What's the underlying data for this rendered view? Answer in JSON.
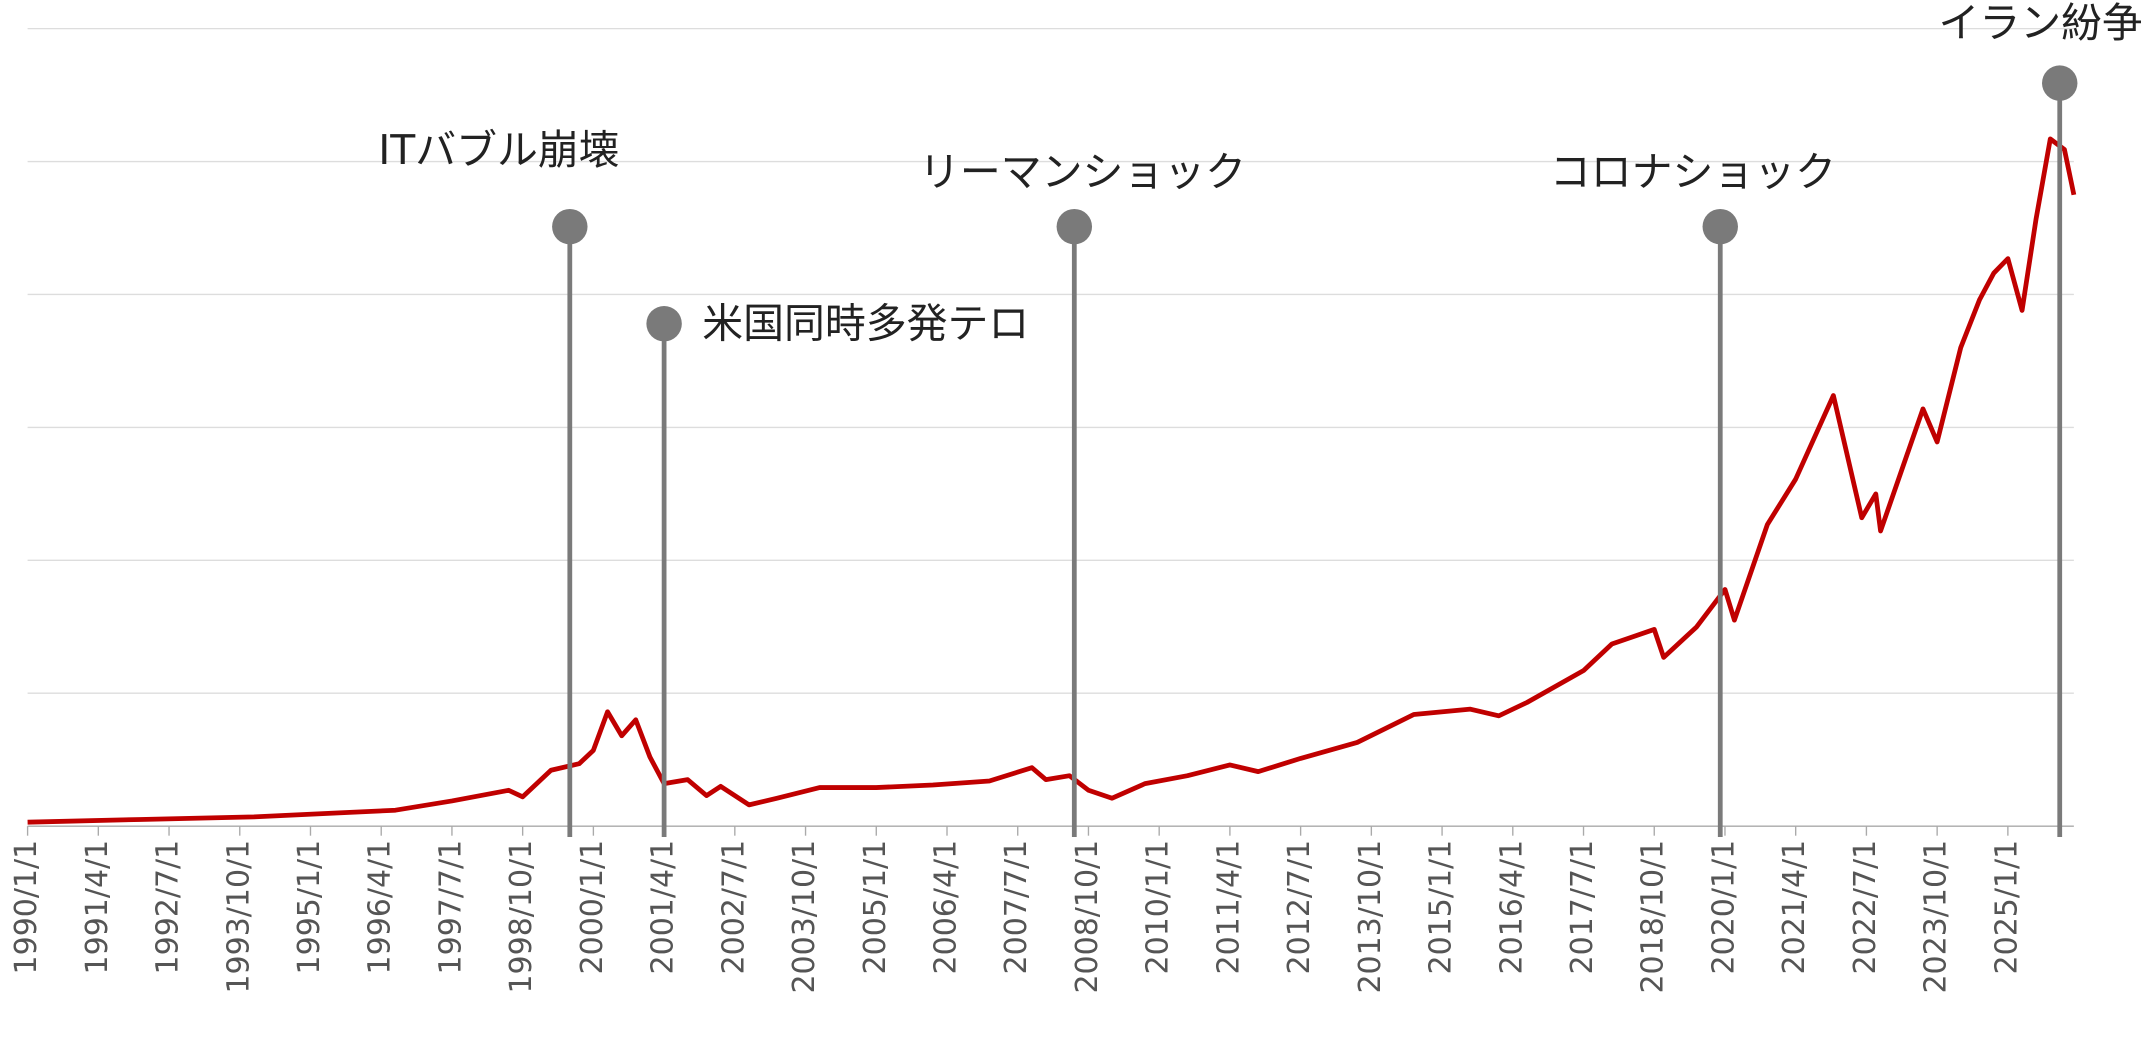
{
  "chart_data": {
    "type": "line",
    "x": [
      "1990/1/1",
      "1992/1/1",
      "1994/1/1",
      "1995/7/1",
      "1996/7/1",
      "1997/7/1",
      "1998/7/1",
      "1998/10/1",
      "1999/4/1",
      "1999/10/1",
      "2000/1/1",
      "2000/4/1",
      "2000/7/1",
      "2000/10/1",
      "2001/1/1",
      "2001/4/1",
      "2001/9/1",
      "2002/1/1",
      "2002/4/1",
      "2002/10/1",
      "2003/4/1",
      "2004/1/1",
      "2005/1/1",
      "2006/1/1",
      "2007/1/1",
      "2007/10/1",
      "2008/1/1",
      "2008/6/1",
      "2008/10/1",
      "2009/3/1",
      "2009/10/1",
      "2010/7/1",
      "2011/4/1",
      "2011/10/1",
      "2012/7/1",
      "2013/7/1",
      "2014/7/1",
      "2015/7/1",
      "2016/1/1",
      "2016/7/1",
      "2017/7/1",
      "2018/1/1",
      "2018/10/1",
      "2018/12/1",
      "2019/7/1",
      "2020/1/1",
      "2020/3/1",
      "2020/10/1",
      "2021/4/1",
      "2021/12/1",
      "2022/6/1",
      "2022/9/1",
      "2022/10/1",
      "2023/7/1",
      "2023/10/1",
      "2024/3/1",
      "2024/7/1",
      "2024/10/1",
      "2025/1/1",
      "2025/4/1",
      "2025/7/1",
      "2025/10/1",
      "2026/1/1",
      "2026/3/1"
    ],
    "values": [
      0.03,
      0.05,
      0.07,
      0.1,
      0.12,
      0.19,
      0.27,
      0.22,
      0.42,
      0.47,
      0.57,
      0.86,
      0.68,
      0.8,
      0.52,
      0.32,
      0.35,
      0.23,
      0.3,
      0.16,
      0.21,
      0.29,
      0.29,
      0.31,
      0.34,
      0.44,
      0.35,
      0.38,
      0.27,
      0.21,
      0.32,
      0.38,
      0.46,
      0.41,
      0.51,
      0.63,
      0.84,
      0.88,
      0.83,
      0.93,
      1.17,
      1.37,
      1.48,
      1.27,
      1.5,
      1.78,
      1.55,
      2.27,
      2.61,
      3.24,
      2.32,
      2.5,
      2.22,
      3.14,
      2.89,
      3.6,
      3.96,
      4.16,
      4.27,
      3.88,
      4.57,
      5.17,
      5.09,
      4.75
    ],
    "color": "#c00000",
    "xlim": [
      "1990/1/1",
      "2026/3/1"
    ],
    "xticks": [
      "1990/1/1",
      "1991/4/1",
      "1992/7/1",
      "1993/10/1",
      "1995/1/1",
      "1996/4/1",
      "1997/7/1",
      "1998/10/1",
      "2000/1/1",
      "2001/4/1",
      "2002/7/1",
      "2003/10/1",
      "2005/1/1",
      "2006/4/1",
      "2007/7/1",
      "2008/10/1",
      "2010/1/1",
      "2011/4/1",
      "2012/7/1",
      "2013/10/1",
      "2015/1/1",
      "2016/4/1",
      "2017/7/1",
      "2018/10/1",
      "2020/1/1",
      "2021/4/1",
      "2022/7/1",
      "2023/10/1",
      "2025/1/1"
    ],
    "ylim": [
      0,
      6
    ],
    "yticks": [
      0,
      1,
      2,
      3,
      4,
      5,
      6
    ],
    "ytick_labels": false,
    "grid": true,
    "annotations": [
      {
        "label": "ITバブル崩壊",
        "x": "1999/8/1",
        "y": 4.51
      },
      {
        "label": "米国同時多発テロ",
        "x": "2001/4/1",
        "y": 3.78
      },
      {
        "label": "リーマンショック",
        "x": "2008/7/1",
        "y": 4.51
      },
      {
        "label": "コロナショック",
        "x": "2019/12/1",
        "y": 4.51
      },
      {
        "label": "イラン紛争",
        "x": "2025/12/1",
        "y": 5.59
      }
    ],
    "annotation_color": "#7a7a7a"
  }
}
